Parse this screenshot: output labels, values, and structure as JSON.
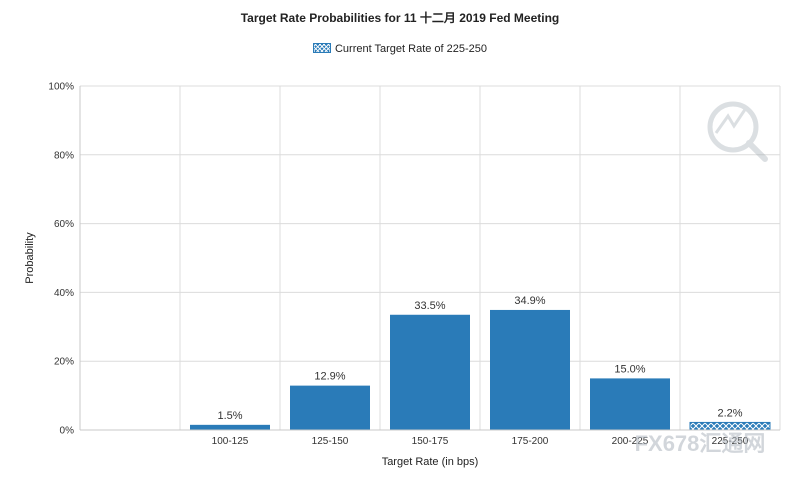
{
  "chart_data": {
    "type": "bar",
    "title": "Target Rate Probabilities for 11 十二月 2019 Fed Meeting",
    "legend": {
      "label": "Current Target Rate of 225-250",
      "position": "top"
    },
    "xlabel": "Target Rate (in bps)",
    "ylabel": "Probability",
    "categories": [
      "100-125",
      "125-150",
      "150-175",
      "175-200",
      "200-225",
      "225-250"
    ],
    "values": [
      1.5,
      12.9,
      33.5,
      34.9,
      15.0,
      2.2
    ],
    "value_labels": [
      "1.5%",
      "12.9%",
      "33.5%",
      "34.9%",
      "15.0%",
      "2.2%"
    ],
    "highlighted_category": "225-250",
    "ylim": [
      0,
      100
    ],
    "yticks": [
      0,
      20,
      40,
      60,
      80,
      100
    ],
    "ytick_labels": [
      "0%",
      "20%",
      "40%",
      "60%",
      "80%",
      "100%"
    ],
    "grid": true,
    "bar_color": "#2a7bb8"
  },
  "watermark": {
    "text": "FX678汇通网"
  }
}
